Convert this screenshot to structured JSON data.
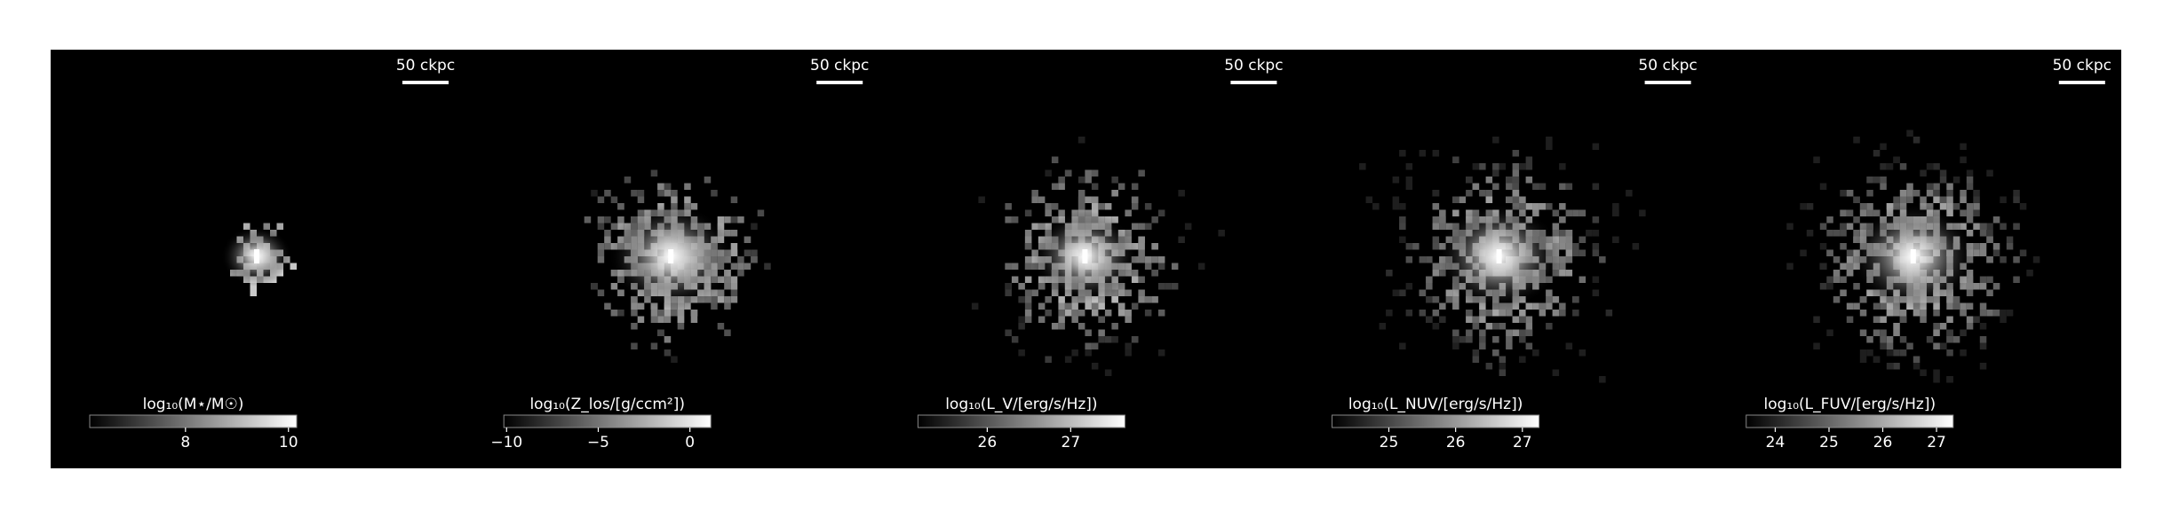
{
  "chart_data": [
    {
      "type": "image",
      "scale_bar_label": "50 ckpc",
      "colorbar": {
        "label": "log₁₀(M⋆/M☉)",
        "clim": [
          6.14,
          10.16
        ],
        "ticks": [
          8,
          10
        ],
        "colormap": "gray"
      }
    },
    {
      "type": "image",
      "scale_bar_label": "50 ckpc",
      "colorbar": {
        "label": "log₁₀(Z_los/[g/ccm²])",
        "clim": [
          -10.15,
          1.14
        ],
        "ticks": [
          {
            "value": -10,
            "label": "−10"
          },
          {
            "value": -5,
            "label": "−5"
          },
          0
        ],
        "colormap": "gray"
      }
    },
    {
      "type": "image",
      "scale_bar_label": "50 ckpc",
      "colorbar": {
        "label": "log₁₀(L_V/[erg/s/Hz])",
        "clim": [
          25.17,
          27.65
        ],
        "ticks": [
          26,
          27
        ],
        "colormap": "gray"
      }
    },
    {
      "type": "image",
      "scale_bar_label": "50 ckpc",
      "colorbar": {
        "label": "log₁₀(L_NUV/[erg/s/Hz])",
        "clim": [
          24.15,
          27.25
        ],
        "ticks": [
          25,
          26,
          27
        ],
        "colormap": "gray"
      }
    },
    {
      "type": "image",
      "scale_bar_label": "50 ckpc",
      "colorbar": {
        "label": "log₁₀(L_FUV/[erg/s/Hz])",
        "clim": [
          23.46,
          27.31
        ],
        "ticks": [
          24,
          25,
          26,
          27
        ],
        "colormap": "gray"
      }
    }
  ]
}
